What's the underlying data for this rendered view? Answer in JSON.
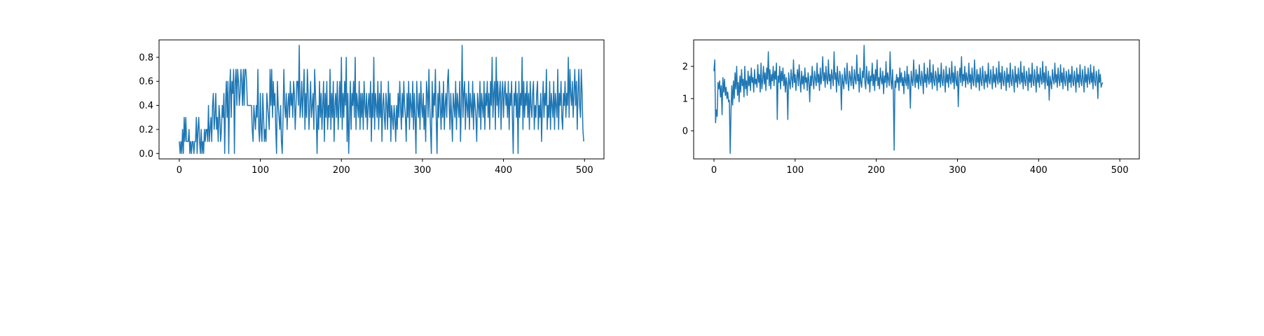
{
  "colors": {
    "line": "#1f77b4",
    "axes": "#000000",
    "background": "#ffffff"
  },
  "chart_data": [
    {
      "type": "line",
      "title": "",
      "xlabel": "",
      "ylabel": "",
      "grid": false,
      "xlim": [
        -25,
        524
      ],
      "ylim": [
        -0.045,
        0.945
      ],
      "x_ticks": [
        0,
        100,
        200,
        300,
        400,
        500
      ],
      "x_tick_labels": [
        "0",
        "100",
        "200",
        "300",
        "400",
        "500"
      ],
      "y_ticks": [
        0.0,
        0.2,
        0.4,
        0.6,
        0.8
      ],
      "y_tick_labels": [
        "0.0",
        "0.2",
        "0.4",
        "0.6",
        "0.8"
      ],
      "series": [
        {
          "x_start": 0,
          "x_step": 1,
          "values": [
            0.1,
            0.0,
            0.1,
            0.0,
            0.2,
            0.0,
            0.3,
            0.1,
            0.3,
            0.1,
            0.1,
            0.1,
            0.2,
            0.0,
            0.1,
            0.0,
            0.1,
            0.1,
            0.0,
            0.1,
            0.1,
            0.3,
            0.0,
            0.2,
            0.3,
            0.1,
            0.0,
            0.2,
            0.0,
            0.1,
            0.0,
            0.2,
            0.1,
            0.2,
            0.2,
            0.1,
            0.4,
            0.1,
            0.2,
            0.3,
            0.1,
            0.4,
            0.5,
            0.2,
            0.3,
            0.5,
            0.2,
            0.3,
            0.1,
            0.4,
            0.3,
            0.1,
            0.2,
            0.4,
            0.3,
            0.5,
            0.0,
            0.4,
            0.6,
            0.3,
            0.6,
            0.0,
            0.5,
            0.7,
            0.3,
            0.6,
            0.5,
            0.7,
            0.0,
            0.6,
            0.7,
            0.4,
            0.7,
            0.6,
            0.4,
            0.5,
            0.7,
            0.6,
            0.4,
            0.7,
            0.4,
            0.7,
            0.7,
            0.6,
            0.4,
            0.4,
            0.4,
            0.4,
            0.4,
            0.4,
            0.2,
            0.1,
            0.4,
            0.3,
            0.2,
            0.4,
            0.3,
            0.7,
            0.2,
            0.1,
            0.5,
            0.2,
            0.1,
            0.5,
            0.3,
            0.1,
            0.2,
            0.1,
            0.5,
            0.4,
            0.3,
            0.2,
            0.7,
            0.4,
            0.7,
            0.3,
            0.6,
            0.4,
            0.5,
            0.2,
            0.0,
            0.6,
            0.4,
            0.3,
            0.2,
            0.4,
            0.1,
            0.0,
            0.3,
            0.7,
            0.4,
            0.3,
            0.5,
            0.2,
            0.4,
            0.5,
            0.3,
            0.6,
            0.4,
            0.5,
            0.3,
            0.6,
            0.5,
            0.2,
            0.4,
            0.6,
            0.6,
            0.4,
            0.9,
            0.3,
            0.4,
            0.6,
            0.3,
            0.5,
            0.7,
            0.2,
            0.5,
            0.3,
            0.7,
            0.5,
            0.2,
            0.4,
            0.6,
            0.3,
            0.4,
            0.5,
            0.2,
            0.7,
            0.5,
            0.3,
            0.0,
            0.4,
            0.2,
            0.6,
            0.3,
            0.5,
            0.2,
            0.4,
            0.6,
            0.1,
            0.5,
            0.3,
            0.6,
            0.2,
            0.4,
            0.3,
            0.7,
            0.2,
            0.5,
            0.3,
            0.6,
            0.1,
            0.4,
            0.5,
            0.3,
            0.6,
            0.2,
            0.4,
            0.6,
            0.3,
            0.8,
            0.2,
            0.5,
            0.3,
            0.6,
            0.4,
            0.8,
            0.1,
            0.5,
            0.0,
            0.3,
            0.6,
            0.2,
            0.5,
            0.4,
            0.6,
            0.3,
            0.8,
            0.2,
            0.5,
            0.4,
            0.3,
            0.6,
            0.2,
            0.5,
            0.3,
            0.5,
            0.2,
            0.6,
            0.4,
            0.3,
            0.5,
            0.2,
            0.4,
            0.5,
            0.3,
            0.6,
            0.1,
            0.5,
            0.3,
            0.8,
            0.2,
            0.5,
            0.4,
            0.3,
            0.6,
            0.2,
            0.5,
            0.3,
            0.6,
            0.1,
            0.4,
            0.5,
            0.3,
            0.2,
            0.5,
            0.4,
            0.2,
            0.6,
            0.3,
            0.5,
            0.1,
            0.4,
            0.3,
            0.2,
            0.4,
            0.3,
            0.1,
            0.4,
            0.2,
            0.5,
            0.3,
            0.6,
            0.4,
            0.2,
            0.5,
            0.3,
            0.6,
            0.4,
            0.3,
            0.1,
            0.5,
            0.3,
            0.6,
            0.2,
            0.5,
            0.4,
            0.3,
            0.6,
            0.2,
            0.5,
            0.3,
            0.0,
            0.6,
            0.4,
            0.3,
            0.5,
            0.2,
            0.6,
            0.4,
            0.3,
            0.5,
            0.2,
            0.4,
            0.1,
            0.6,
            0.5,
            0.3,
            0.7,
            0.4,
            0.2,
            0.0,
            0.6,
            0.3,
            0.5,
            0.4,
            0.7,
            0.3,
            0.0,
            0.5,
            0.3,
            0.6,
            0.4,
            0.2,
            0.5,
            0.3,
            0.6,
            0.2,
            0.4,
            0.5,
            0.3,
            0.6,
            0.7,
            0.4,
            0.2,
            0.5,
            0.3,
            0.1,
            0.5,
            0.4,
            0.3,
            0.6,
            0.2,
            0.5,
            0.4,
            0.3,
            0.6,
            0.1,
            0.4,
            0.9,
            0.3,
            0.5,
            0.6,
            0.2,
            0.5,
            0.4,
            0.3,
            0.6,
            0.2,
            0.5,
            0.4,
            0.3,
            0.6,
            0.2,
            0.5,
            0.4,
            0.3,
            0.1,
            0.5,
            0.4,
            0.3,
            0.6,
            0.2,
            0.5,
            0.4,
            0.3,
            0.6,
            0.2,
            0.5,
            0.4,
            0.6,
            0.3,
            0.5,
            0.2,
            0.6,
            0.4,
            0.8,
            0.3,
            0.5,
            0.6,
            0.2,
            0.8,
            0.4,
            0.6,
            0.3,
            0.5,
            0.6,
            0.2,
            0.5,
            0.6,
            0.3,
            0.5,
            0.6,
            0.4,
            0.5,
            0.3,
            0.6,
            0.2,
            0.5,
            0.4,
            0.6,
            0.3,
            0.0,
            0.5,
            0.4,
            0.6,
            0.3,
            0.5,
            0.0,
            0.6,
            0.3,
            0.5,
            0.4,
            0.8,
            0.2,
            0.6,
            0.3,
            0.5,
            0.4,
            0.6,
            0.3,
            0.5,
            0.2,
            0.6,
            0.4,
            0.3,
            0.5,
            0.6,
            0.2,
            0.4,
            0.3,
            0.5,
            0.6,
            0.2,
            0.4,
            0.3,
            0.5,
            0.1,
            0.4,
            0.6,
            0.3,
            0.5,
            0.4,
            0.7,
            0.2,
            0.4,
            0.3,
            0.6,
            0.2,
            0.5,
            0.4,
            0.3,
            0.6,
            0.2,
            0.5,
            0.4,
            0.3,
            0.7,
            0.2,
            0.5,
            0.4,
            0.6,
            0.3,
            0.2,
            0.5,
            0.4,
            0.6,
            0.3,
            0.5,
            0.4,
            0.8,
            0.3,
            0.7,
            0.5,
            0.4,
            0.6,
            0.3,
            0.5,
            0.7,
            0.4,
            0.6,
            0.2,
            0.5,
            0.7,
            0.4,
            0.3,
            0.7,
            0.5,
            0.2,
            0.1
          ]
        }
      ]
    },
    {
      "type": "line",
      "title": "",
      "xlabel": "",
      "ylabel": "",
      "grid": false,
      "xlim": [
        -25,
        524
      ],
      "ylim": [
        -0.87,
        2.82
      ],
      "x_ticks": [
        0,
        100,
        200,
        300,
        400,
        500
      ],
      "x_tick_labels": [
        "0",
        "100",
        "200",
        "300",
        "400",
        "500"
      ],
      "y_ticks": [
        0,
        1,
        2
      ],
      "y_tick_labels": [
        "0",
        "1",
        "2"
      ],
      "series": [
        {
          "x_start": 0,
          "x_step": 1,
          "values": [
            1.85,
            2.2,
            0.25,
            0.65,
            0.45,
            1.5,
            1.3,
            1.55,
            1.05,
            1.4,
            0.5,
            1.65,
            1.2,
            1.6,
            1.1,
            1.35,
            1.0,
            1.2,
            0.9,
            0.95,
            -0.7,
            0.6,
            1.4,
            0.8,
            1.55,
            1.0,
            1.8,
            1.3,
            2.0,
            1.1,
            1.5,
            0.9,
            1.7,
            1.2,
            1.9,
            1.4,
            1.6,
            1.05,
            2.0,
            1.3,
            1.55,
            1.1,
            1.85,
            1.4,
            1.7,
            1.25,
            1.95,
            1.5,
            1.65,
            1.2,
            1.9,
            1.45,
            1.6,
            1.35,
            2.05,
            1.5,
            1.75,
            1.2,
            2.1,
            1.3,
            1.55,
            2.0,
            1.45,
            1.8,
            1.25,
            1.95,
            1.6,
            2.45,
            1.4,
            1.9,
            1.3,
            1.75,
            1.55,
            2.0,
            1.4,
            1.85,
            1.6,
            2.1,
            0.35,
            1.7,
            1.5,
            2.0,
            1.3,
            1.85,
            1.55,
            1.95,
            1.4,
            1.75,
            1.2,
            1.65,
            1.45,
            0.35,
            1.8,
            1.5,
            1.3,
            1.9,
            1.6,
            1.35,
            2.2,
            1.5,
            1.75,
            1.25,
            1.65,
            1.9,
            1.4,
            2.05,
            1.55,
            1.2,
            1.85,
            1.45,
            1.7,
            1.3,
            1.95,
            1.5,
            1.65,
            1.25,
            1.8,
            1.55,
            0.9,
            1.7,
            1.4,
            2.0,
            1.55,
            1.3,
            1.85,
            1.6,
            1.4,
            2.1,
            1.5,
            1.75,
            1.25,
            1.95,
            1.45,
            1.7,
            2.3,
            1.55,
            1.8,
            1.35,
            2.0,
            1.6,
            1.45,
            2.2,
            1.55,
            1.75,
            1.3,
            1.9,
            1.65,
            1.4,
            2.45,
            1.6,
            1.8,
            1.2,
            2.0,
            1.55,
            1.4,
            1.85,
            1.65,
            0.65,
            1.75,
            1.5,
            1.3,
            1.95,
            1.6,
            1.45,
            2.1,
            1.55,
            1.25,
            1.85,
            1.65,
            1.4,
            2.0,
            1.5,
            1.3,
            1.9,
            1.6,
            1.45,
            2.35,
            1.55,
            1.75,
            1.2,
            1.95,
            1.5,
            1.35,
            1.85,
            1.65,
            2.65,
            1.5,
            1.3,
            2.0,
            1.6,
            1.45,
            1.85,
            1.2,
            1.7,
            1.55,
            2.1,
            1.4,
            1.75,
            1.25,
            1.9,
            1.55,
            2.2,
            1.4,
            1.65,
            1.3,
            1.95,
            1.6,
            1.45,
            1.85,
            1.15,
            1.7,
            1.5,
            2.15,
            1.35,
            1.8,
            1.6,
            1.4,
            2.45,
            1.55,
            1.3,
            1.9,
            1.2,
            -0.6,
            1.55,
            1.35,
            1.75,
            1.5,
            1.65,
            1.25,
            1.95,
            1.5,
            1.8,
            1.4,
            1.65,
            1.15,
            1.85,
            1.55,
            1.4,
            2.0,
            1.3,
            1.75,
            1.5,
            0.7,
            1.85,
            1.55,
            1.4,
            2.2,
            1.6,
            1.35,
            1.9,
            1.5,
            1.75,
            1.3,
            2.05,
            1.55,
            1.4,
            1.85,
            1.6,
            1.15,
            2.1,
            1.5,
            1.75,
            1.35,
            1.95,
            1.6,
            1.45,
            2.2,
            1.5,
            1.8,
            1.3,
            2.05,
            1.55,
            1.4,
            1.85,
            1.65,
            1.25,
            1.95,
            1.5,
            1.75,
            1.35,
            2.1,
            1.55,
            1.4,
            1.9,
            1.6,
            1.2,
            2.0,
            1.5,
            1.75,
            1.35,
            1.95,
            1.6,
            1.45,
            2.15,
            1.5,
            1.8,
            1.3,
            2.0,
            1.55,
            1.4,
            1.85,
            0.75,
            1.65,
            1.95,
            1.5,
            2.3,
            1.4,
            1.75,
            1.55,
            2.0,
            1.35,
            1.8,
            1.6,
            1.45,
            2.1,
            1.5,
            1.75,
            1.3,
            1.95,
            1.55,
            1.4,
            2.2,
            1.6,
            1.35,
            1.9,
            1.5,
            1.75,
            1.25,
            1.95,
            1.55,
            1.4,
            2.0,
            1.6,
            1.3,
            1.85,
            1.5,
            1.75,
            1.35,
            2.1,
            1.55,
            1.45,
            1.9,
            1.6,
            1.3,
            2.0,
            1.5,
            1.75,
            1.35,
            1.95,
            1.6,
            1.45,
            2.15,
            1.5,
            1.8,
            1.3,
            2.0,
            1.55,
            1.4,
            1.85,
            1.65,
            1.25,
            1.95,
            1.5,
            1.75,
            1.35,
            2.1,
            1.55,
            1.4,
            1.9,
            1.6,
            1.2,
            2.0,
            1.5,
            1.75,
            1.35,
            1.95,
            1.6,
            1.45,
            2.15,
            1.5,
            1.8,
            1.3,
            2.0,
            1.55,
            1.4,
            1.85,
            1.65,
            1.25,
            1.95,
            1.5,
            1.75,
            1.35,
            2.1,
            1.55,
            1.4,
            1.9,
            1.6,
            1.2,
            2.0,
            1.5,
            1.75,
            1.35,
            1.95,
            1.6,
            1.45,
            2.15,
            1.5,
            1.8,
            1.3,
            2.0,
            1.55,
            1.4,
            1.85,
            0.95,
            1.7,
            1.5,
            1.3,
            1.9,
            1.6,
            1.45,
            2.1,
            1.5,
            1.75,
            1.35,
            1.95,
            1.6,
            1.4,
            2.05,
            1.5,
            1.8,
            1.3,
            1.95,
            1.55,
            1.4,
            1.85,
            1.65,
            1.25,
            1.9,
            1.5,
            1.75,
            1.35,
            2.0,
            1.55,
            1.4,
            1.85,
            1.6,
            1.2,
            1.95,
            1.5,
            1.75,
            1.35,
            2.05,
            1.55,
            1.4,
            1.9,
            1.6,
            1.2,
            2.0,
            1.5,
            1.75,
            1.35,
            1.95,
            1.6,
            1.45,
            2.05,
            1.5,
            1.8,
            1.3,
            2.0,
            1.55,
            1.4,
            1.85,
            1.65,
            1.0,
            1.9,
            1.5,
            1.75,
            1.35,
            1.45,
            1.5
          ]
        }
      ]
    }
  ]
}
